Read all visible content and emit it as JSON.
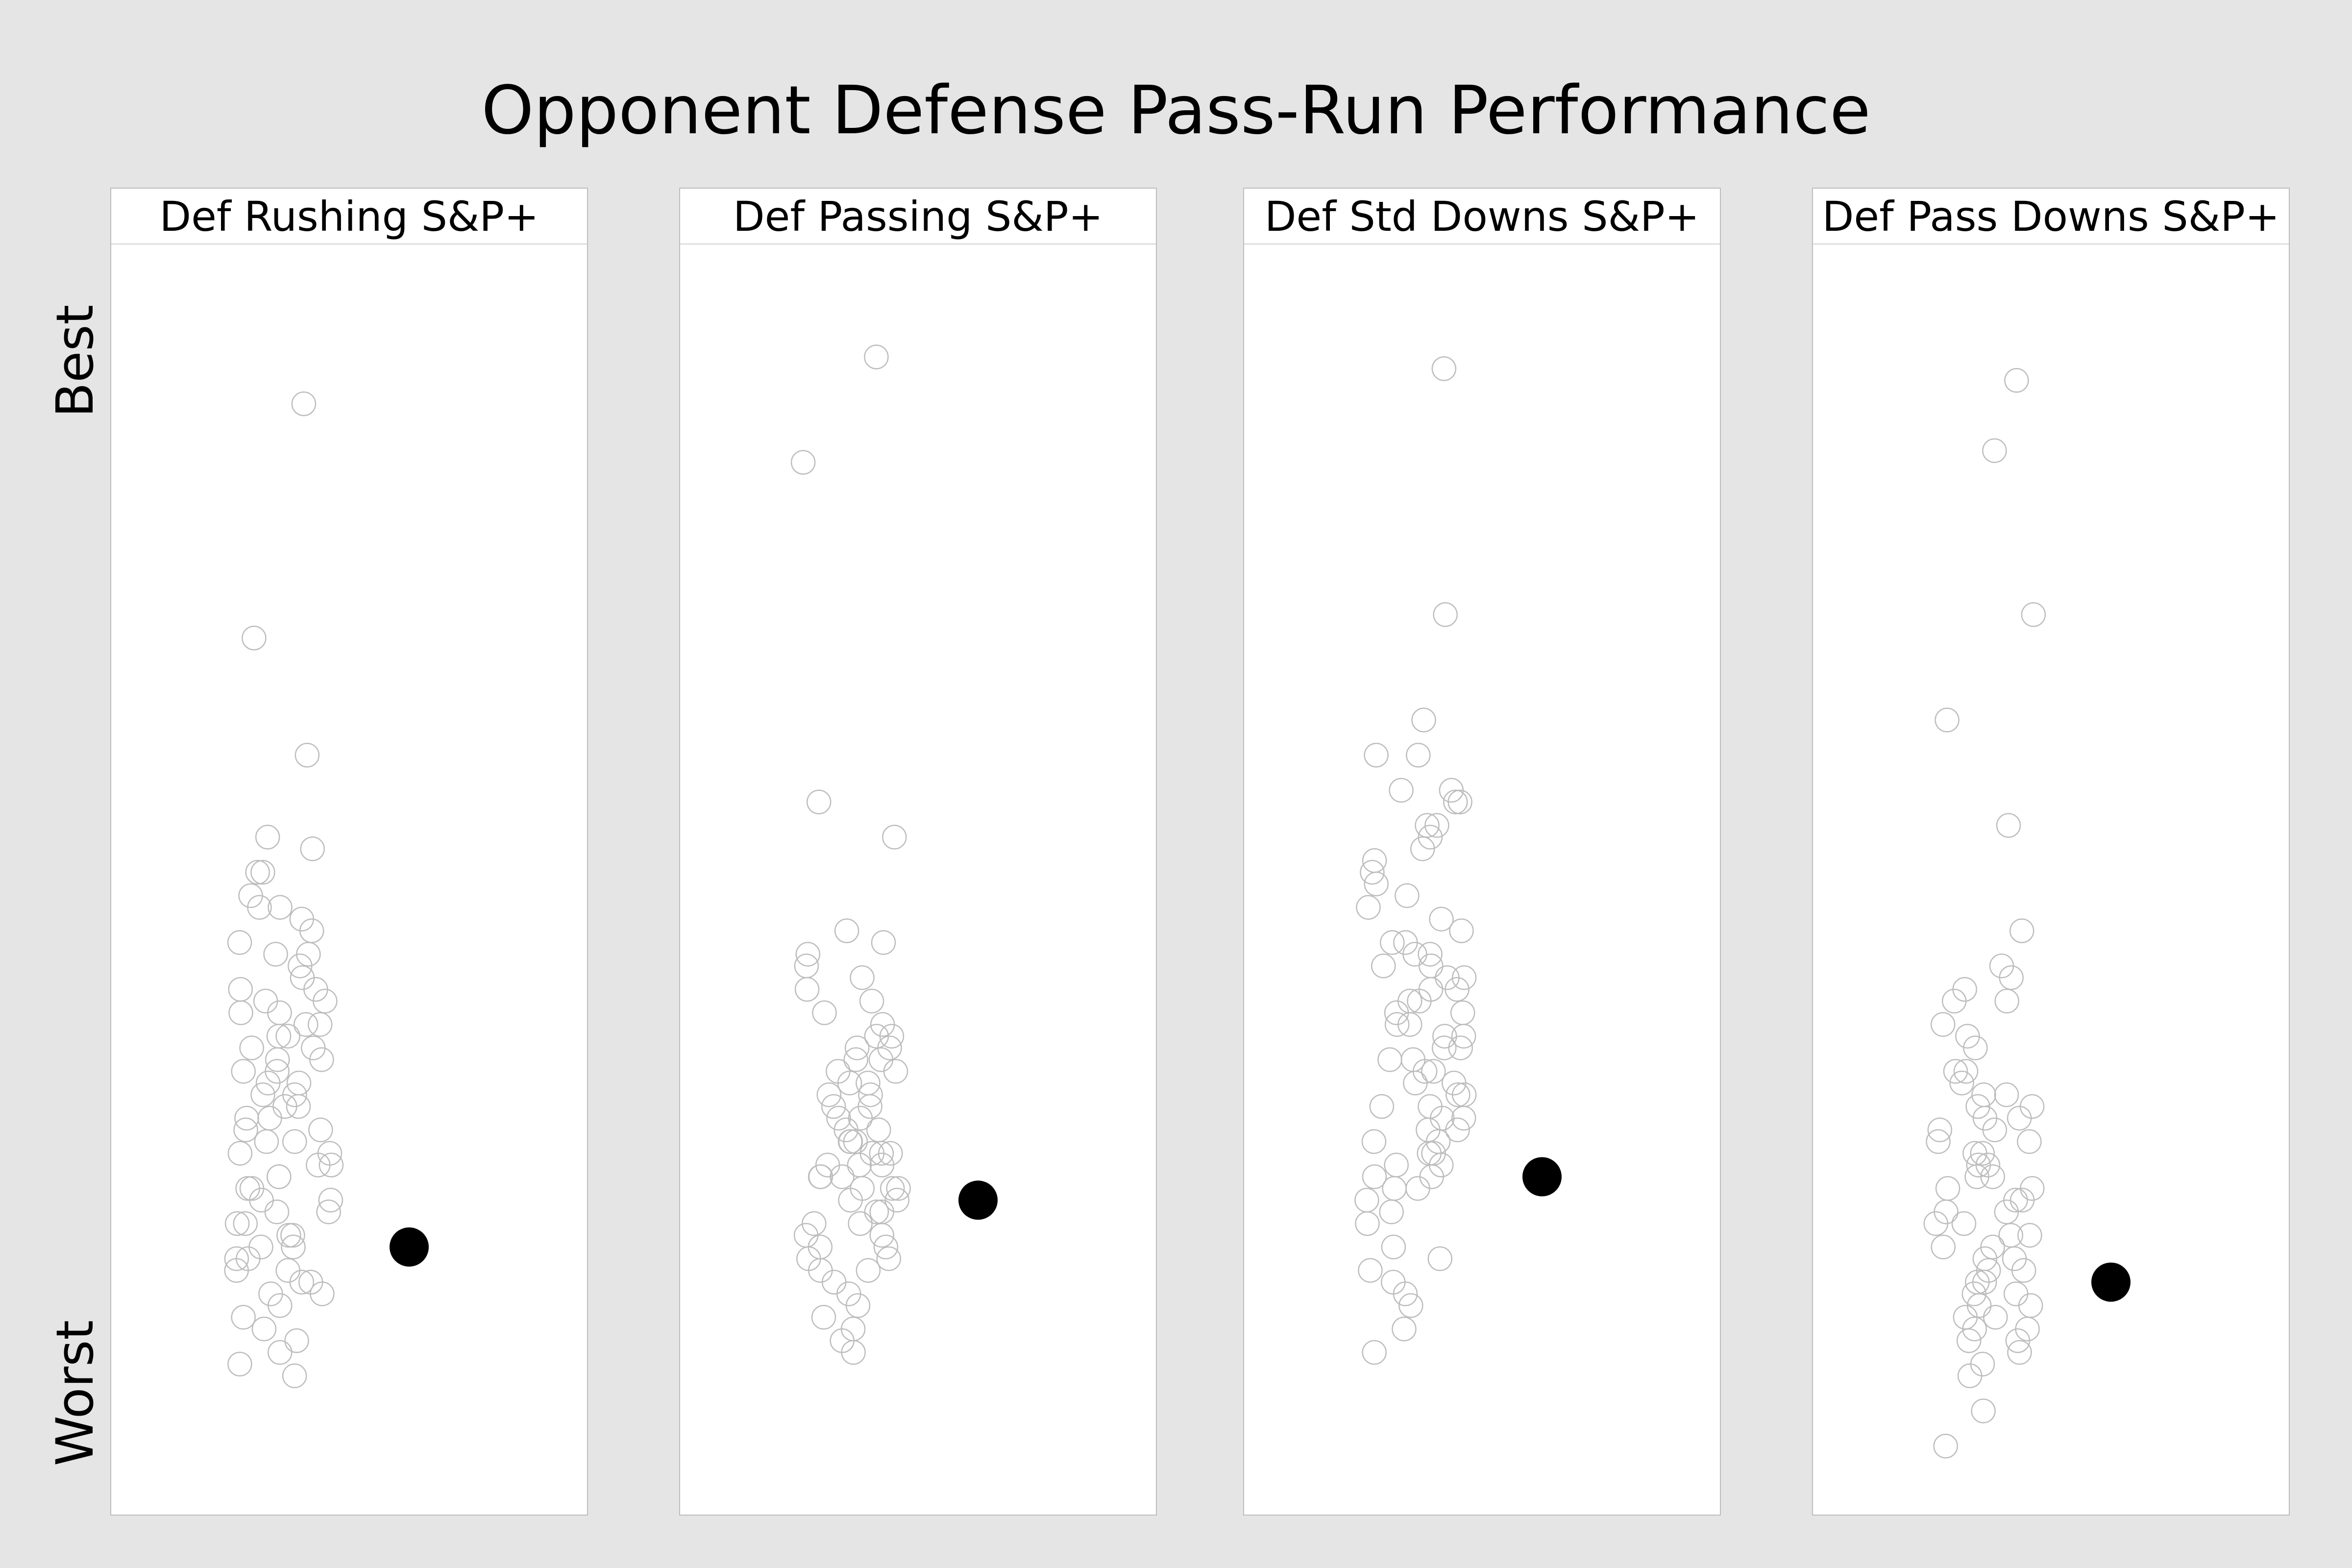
{
  "title": "Opponent Defense Pass-Run Performance",
  "y_axis": {
    "top_label": "Best",
    "bottom_label": "Worst"
  },
  "chart_data": {
    "type": "scatter",
    "description_of_scale": "vertical position = rating from Worst (0) to Best (1)",
    "ylim": [
      0,
      1
    ],
    "panels": [
      {
        "title": "Def Rushing S&P+",
        "highlight": 0.19,
        "values": [
          0.91,
          0.71,
          0.61,
          0.54,
          0.53,
          0.51,
          0.51,
          0.49,
          0.48,
          0.48,
          0.47,
          0.46,
          0.45,
          0.44,
          0.44,
          0.43,
          0.42,
          0.41,
          0.41,
          0.4,
          0.4,
          0.39,
          0.39,
          0.38,
          0.38,
          0.37,
          0.37,
          0.36,
          0.36,
          0.35,
          0.35,
          0.34,
          0.34,
          0.33,
          0.33,
          0.32,
          0.32,
          0.31,
          0.31,
          0.3,
          0.3,
          0.29,
          0.29,
          0.28,
          0.28,
          0.27,
          0.27,
          0.26,
          0.26,
          0.25,
          0.25,
          0.24,
          0.24,
          0.23,
          0.23,
          0.22,
          0.22,
          0.21,
          0.21,
          0.2,
          0.2,
          0.19,
          0.19,
          0.18,
          0.18,
          0.17,
          0.17,
          0.16,
          0.16,
          0.15,
          0.15,
          0.14,
          0.13,
          0.12,
          0.11,
          0.1,
          0.09,
          0.08
        ]
      },
      {
        "title": "Def Passing S&P+",
        "highlight": 0.23,
        "values": [
          0.95,
          0.86,
          0.57,
          0.54,
          0.46,
          0.45,
          0.44,
          0.43,
          0.42,
          0.41,
          0.4,
          0.39,
          0.38,
          0.37,
          0.37,
          0.36,
          0.36,
          0.35,
          0.35,
          0.34,
          0.34,
          0.33,
          0.33,
          0.32,
          0.32,
          0.31,
          0.31,
          0.3,
          0.3,
          0.29,
          0.29,
          0.28,
          0.28,
          0.28,
          0.27,
          0.27,
          0.27,
          0.26,
          0.26,
          0.26,
          0.25,
          0.25,
          0.25,
          0.24,
          0.24,
          0.24,
          0.23,
          0.23,
          0.22,
          0.22,
          0.21,
          0.21,
          0.2,
          0.2,
          0.19,
          0.19,
          0.18,
          0.18,
          0.17,
          0.17,
          0.16,
          0.15,
          0.14,
          0.13,
          0.12,
          0.11,
          0.1
        ]
      },
      {
        "title": "Def Std Downs S&P+",
        "highlight": 0.25,
        "values": [
          0.94,
          0.73,
          0.64,
          0.61,
          0.61,
          0.58,
          0.58,
          0.57,
          0.57,
          0.55,
          0.55,
          0.54,
          0.53,
          0.52,
          0.51,
          0.5,
          0.49,
          0.48,
          0.47,
          0.46,
          0.45,
          0.45,
          0.44,
          0.44,
          0.43,
          0.43,
          0.42,
          0.42,
          0.41,
          0.41,
          0.4,
          0.4,
          0.39,
          0.39,
          0.38,
          0.38,
          0.37,
          0.37,
          0.36,
          0.36,
          0.35,
          0.35,
          0.34,
          0.34,
          0.33,
          0.33,
          0.32,
          0.32,
          0.31,
          0.31,
          0.3,
          0.3,
          0.29,
          0.29,
          0.28,
          0.28,
          0.27,
          0.27,
          0.26,
          0.26,
          0.25,
          0.25,
          0.24,
          0.24,
          0.23,
          0.22,
          0.21,
          0.19,
          0.18,
          0.17,
          0.16,
          0.15,
          0.14,
          0.12,
          0.1
        ]
      },
      {
        "title": "Def Pass Downs S&P+",
        "highlight": 0.16,
        "values": [
          0.93,
          0.87,
          0.73,
          0.64,
          0.55,
          0.46,
          0.43,
          0.42,
          0.41,
          0.4,
          0.4,
          0.38,
          0.37,
          0.36,
          0.34,
          0.34,
          0.33,
          0.32,
          0.32,
          0.31,
          0.31,
          0.3,
          0.3,
          0.29,
          0.29,
          0.28,
          0.28,
          0.27,
          0.27,
          0.26,
          0.26,
          0.25,
          0.25,
          0.24,
          0.24,
          0.23,
          0.23,
          0.22,
          0.22,
          0.21,
          0.21,
          0.2,
          0.2,
          0.19,
          0.19,
          0.18,
          0.18,
          0.17,
          0.17,
          0.16,
          0.16,
          0.15,
          0.15,
          0.14,
          0.14,
          0.13,
          0.13,
          0.12,
          0.12,
          0.11,
          0.11,
          0.1,
          0.09,
          0.08,
          0.05,
          0.02
        ]
      }
    ]
  }
}
